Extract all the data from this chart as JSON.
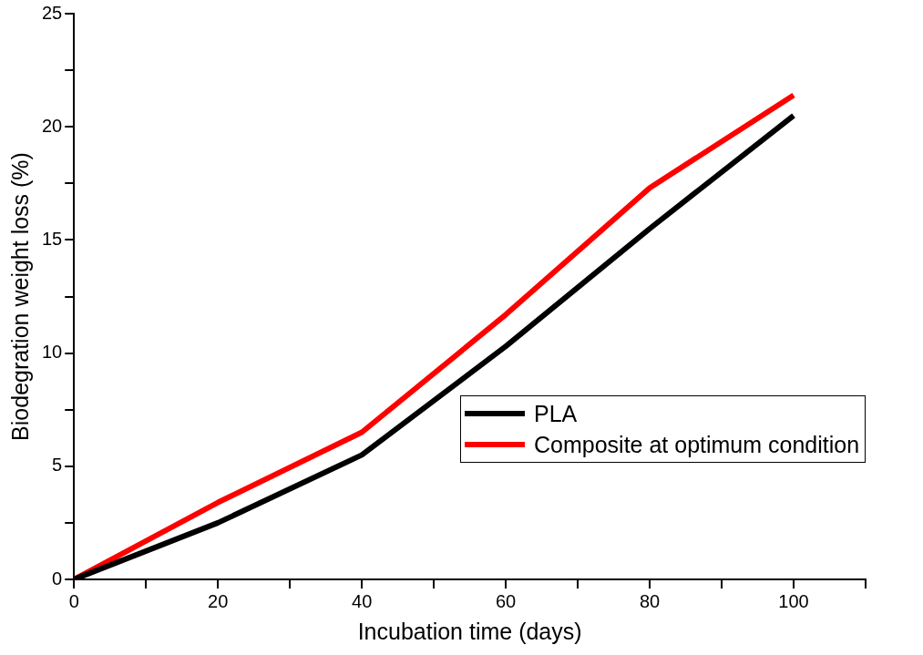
{
  "chart_data": {
    "type": "line",
    "xlabel": "Incubation time (days)",
    "ylabel": "Biodegration weight loss (%)",
    "x": [
      0,
      20,
      40,
      60,
      80,
      100
    ],
    "series": [
      {
        "name": "PLA",
        "color": "#000000",
        "values": [
          0,
          2.5,
          5.5,
          10.3,
          15.5,
          20.5
        ]
      },
      {
        "name": "Composite at optimum condition",
        "color": "#ff0000",
        "values": [
          0,
          3.4,
          6.5,
          11.7,
          17.3,
          21.4
        ]
      }
    ],
    "xlim": [
      0,
      110
    ],
    "xticks": [
      0,
      {
        "value": 10,
        "label": null
      },
      20,
      {
        "value": 30,
        "label": null
      },
      40,
      {
        "value": 50,
        "label": null
      },
      60,
      {
        "value": 70,
        "label": null
      },
      80,
      {
        "value": 90,
        "label": null
      },
      100,
      {
        "value": 110,
        "label": null
      }
    ],
    "ylim": [
      0,
      25
    ],
    "yticks": [
      0,
      {
        "value": 2.5,
        "label": null
      },
      5,
      {
        "value": 7.5,
        "label": null
      },
      10,
      {
        "value": 12.5,
        "label": null
      },
      15,
      {
        "value": 17.5,
        "label": null
      },
      20,
      {
        "value": 22.5,
        "label": null
      },
      25
    ],
    "grid": false,
    "legend": "right",
    "marker": "none",
    "line_style": "solid"
  }
}
